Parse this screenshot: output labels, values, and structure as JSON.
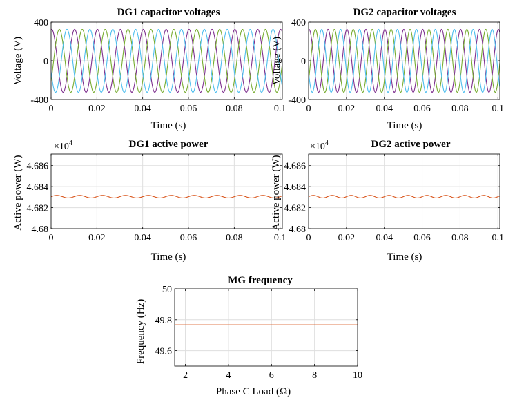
{
  "chart_data": [
    {
      "id": "dg1-voltage",
      "type": "line",
      "title": "DG1 capacitor voltages",
      "xlabel": "Time (s)",
      "ylabel": "Voltage (V)",
      "xlim": [
        0,
        0.101
      ],
      "ylim": [
        -400,
        400
      ],
      "xticks": [
        0,
        0.02,
        0.04,
        0.06,
        0.08,
        0.1
      ],
      "xtick_labels": [
        "0",
        "0.02",
        "0.04",
        "0.06",
        "0.08",
        "0.1"
      ],
      "yticks": [
        400,
        0,
        -400
      ],
      "ytick_labels": [
        "400",
        "0",
        "-400"
      ],
      "grid": true,
      "series_model": {
        "kind": "sine",
        "amplitude": 325,
        "frequency_hz": 100
      },
      "series": [
        {
          "phase_deg": 80,
          "color": "#7E2F8E"
        },
        {
          "phase_deg": -40,
          "color": "#77AC30"
        },
        {
          "phase_deg": 200,
          "color": "#4DBEEE"
        }
      ]
    },
    {
      "id": "dg2-voltage",
      "type": "line",
      "title": "DG2 capacitor voltages",
      "xlabel": "Time (s)",
      "ylabel": "Voltage (V)",
      "xlim": [
        0,
        0.101
      ],
      "ylim": [
        -400,
        400
      ],
      "xticks": [
        0,
        0.02,
        0.04,
        0.06,
        0.08,
        0.1
      ],
      "xtick_labels": [
        "0",
        "0.02",
        "0.04",
        "0.06",
        "0.08",
        "0.1"
      ],
      "yticks": [
        400,
        0,
        -400
      ],
      "ytick_labels": [
        "400",
        "0",
        "-400"
      ],
      "grid": true,
      "series_model": {
        "kind": "sine",
        "amplitude": 325,
        "frequency_hz": 100
      },
      "series": [
        {
          "phase_deg": 80,
          "color": "#7E2F8E"
        },
        {
          "phase_deg": -40,
          "color": "#77AC30"
        },
        {
          "phase_deg": 200,
          "color": "#4DBEEE"
        }
      ]
    },
    {
      "id": "dg1-power",
      "type": "line",
      "title": "DG1 active power",
      "xlabel": "Time (s)",
      "ylabel": "Active power (W)",
      "exponent_label": "×10",
      "exponent_power": "4",
      "xlim": [
        0,
        0.101
      ],
      "ylim": [
        4.68,
        4.6871
      ],
      "xticks": [
        0,
        0.02,
        0.04,
        0.06,
        0.08,
        0.1
      ],
      "xtick_labels": [
        "0",
        "0.02",
        "0.04",
        "0.06",
        "0.08",
        "0.1"
      ],
      "yticks": [
        4.686,
        4.684,
        4.682,
        4.68
      ],
      "ytick_labels": [
        "4.686",
        "4.684",
        "4.682",
        "4.68"
      ],
      "grid": true,
      "series_model": {
        "kind": "ripple",
        "mean": 4.68305,
        "amplitude": 0.00012,
        "frequency_hz": 100
      },
      "series": [
        {
          "color": "#D95319"
        }
      ]
    },
    {
      "id": "dg2-power",
      "type": "line",
      "title": "DG2 active power",
      "xlabel": "Time (s)",
      "ylabel": "Active power (W)",
      "exponent_label": "×10",
      "exponent_power": "4",
      "xlim": [
        0,
        0.101
      ],
      "ylim": [
        4.68,
        4.6871
      ],
      "xticks": [
        0,
        0.02,
        0.04,
        0.06,
        0.08,
        0.1
      ],
      "xtick_labels": [
        "0",
        "0.02",
        "0.04",
        "0.06",
        "0.08",
        "0.1"
      ],
      "yticks": [
        4.686,
        4.684,
        4.682,
        4.68
      ],
      "ytick_labels": [
        "4.686",
        "4.684",
        "4.682",
        "4.68"
      ],
      "grid": true,
      "series_model": {
        "kind": "ripple",
        "mean": 4.68305,
        "amplitude": 0.00012,
        "frequency_hz": 100
      },
      "series": [
        {
          "color": "#D95319"
        }
      ]
    },
    {
      "id": "mg-frequency",
      "type": "line",
      "title": "MG frequency",
      "xlabel": "Phase C Load (Ω)",
      "ylabel": "Frequency (Hz)",
      "xlim": [
        1.5,
        10
      ],
      "ylim": [
        49.5,
        50
      ],
      "xticks": [
        2,
        4,
        6,
        8,
        10
      ],
      "xtick_labels": [
        "2",
        "4",
        "6",
        "8",
        "10"
      ],
      "yticks": [
        50,
        49.8,
        49.6
      ],
      "ytick_labels": [
        "50",
        "49.8",
        "49.6"
      ],
      "grid": true,
      "series": [
        {
          "color": "#D95319",
          "x": [
            1.5,
            10
          ],
          "y": [
            49.767,
            49.767
          ]
        }
      ]
    }
  ]
}
